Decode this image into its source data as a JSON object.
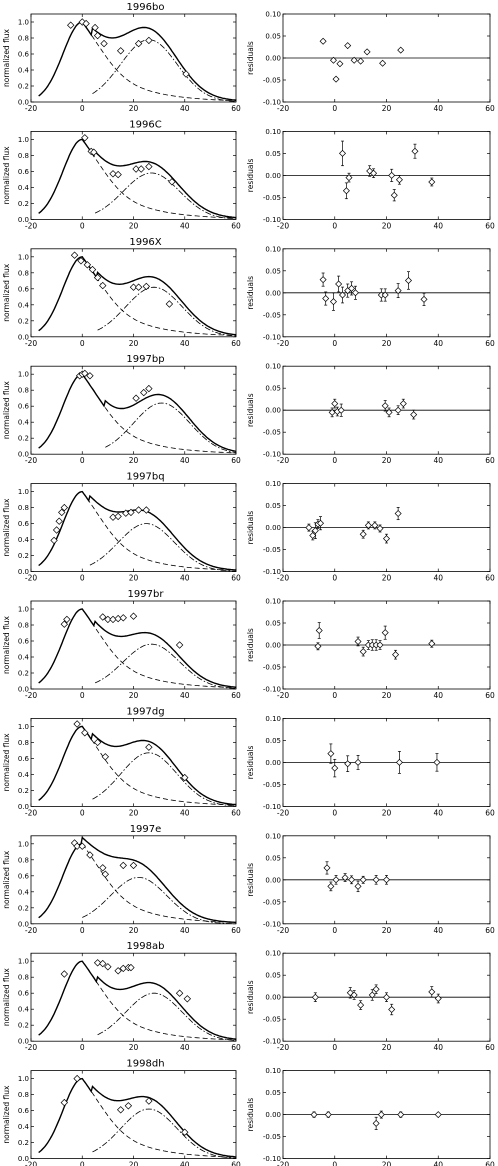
{
  "chart_data": {
    "type": "scatter",
    "layout": "10 rows x 2 columns",
    "rows": [
      {
        "name": "1996bo",
        "x": [
          -4.5,
          0,
          1.5,
          5,
          6,
          8.5,
          15,
          22,
          26,
          40.5
        ],
        "flux": [
          0.96,
          1.0,
          0.98,
          0.93,
          0.83,
          0.73,
          0.64,
          0.73,
          0.77,
          0.35
        ],
        "residual": [
          0.038,
          -0.005,
          -0.048,
          -0.013,
          0.028,
          -0.005,
          -0.007,
          0.014,
          -0.012,
          0.018
        ],
        "residual_x": [
          -4.5,
          -0.5,
          0.5,
          2,
          5,
          7.5,
          10,
          12.5,
          18.5,
          25.5
        ],
        "residual_err": [
          0,
          0,
          0,
          0,
          0,
          0,
          0,
          0,
          0,
          0
        ],
        "model": {
          "peak2": 26,
          "amp2": 0.78,
          "w1": 9,
          "w2": 11
        }
      },
      {
        "name": "1996C",
        "x": [
          1,
          3.5,
          4.5,
          12,
          14,
          21,
          23,
          26,
          35
        ],
        "flux": [
          1.02,
          0.85,
          0.84,
          0.57,
          0.56,
          0.63,
          0.63,
          0.66,
          0.47
        ],
        "residual": [
          0.05,
          -0.035,
          -0.005,
          0.01,
          0.005,
          0.0,
          -0.045,
          -0.01,
          0.055,
          -0.015
        ],
        "residual_x": [
          3,
          4.5,
          5.5,
          13.5,
          15,
          22,
          23,
          25,
          31,
          37.5
        ],
        "residual_err": [
          0.028,
          0.018,
          0.01,
          0.012,
          0.01,
          0.014,
          0.013,
          0.01,
          0.016,
          0.009
        ],
        "model": {
          "peak2": 27,
          "amp2": 0.58,
          "w1": 9,
          "w2": 11
        }
      },
      {
        "name": "1996X",
        "x": [
          -3,
          -0.5,
          2,
          4,
          6,
          8,
          20,
          22,
          25,
          34
        ],
        "flux": [
          1.02,
          0.95,
          0.9,
          0.84,
          0.74,
          0.64,
          0.62,
          0.62,
          0.63,
          0.41
        ],
        "residual": [
          0.03,
          -0.013,
          -0.02,
          0.02,
          -0.005,
          0.005,
          0.01,
          0.0,
          -0.005,
          -0.005,
          0.005,
          0.028,
          -0.015
        ],
        "residual_x": [
          -4.5,
          -3.5,
          -0.5,
          1.5,
          3,
          5,
          6.5,
          8,
          18,
          19.5,
          24.5,
          28.5,
          34.5
        ],
        "residual_err": [
          0.015,
          0.015,
          0.02,
          0.018,
          0.018,
          0.015,
          0.015,
          0.015,
          0.014,
          0.014,
          0.016,
          0.02,
          0.014
        ],
        "model": {
          "peak2": 28,
          "amp2": 0.62,
          "w1": 9,
          "w2": 11
        }
      },
      {
        "name": "1997bp",
        "x": [
          -1,
          0,
          1,
          3,
          21,
          24,
          26
        ],
        "flux": [
          0.98,
          1.0,
          1.01,
          0.98,
          0.7,
          0.77,
          0.82
        ],
        "residual": [
          -0.005,
          0.015,
          -0.003,
          0.0,
          0.01,
          -0.005,
          0.0,
          0.015,
          -0.01
        ],
        "residual_x": [
          -1,
          0,
          1,
          2.5,
          19.5,
          21,
          24.5,
          26.5,
          30.5
        ],
        "residual_err": [
          0.01,
          0.01,
          0.01,
          0.014,
          0.012,
          0.01,
          0.01,
          0.01,
          0.01
        ],
        "model": {
          "peak2": 31,
          "amp2": 0.64,
          "w1": 9,
          "w2": 11
        }
      },
      {
        "name": "1997bq",
        "x": [
          -11,
          -10,
          -9,
          -8,
          -7,
          12,
          14,
          17,
          19,
          22,
          25
        ],
        "flux": [
          0.39,
          0.52,
          0.63,
          0.74,
          0.8,
          0.68,
          0.69,
          0.73,
          0.74,
          0.77,
          0.77
        ],
        "residual": [
          0.0,
          -0.018,
          -0.007,
          0.008,
          0.01,
          -0.015,
          0.005,
          0.005,
          -0.002,
          -0.025,
          0.032
        ],
        "residual_x": [
          -10,
          -8.5,
          -7.5,
          -6.5,
          -5.5,
          11,
          13,
          15.5,
          17.5,
          20,
          24.5
        ],
        "residual_err": [
          0.008,
          0.01,
          0.018,
          0.01,
          0.015,
          0.009,
          0.008,
          0.008,
          0.008,
          0.01,
          0.014
        ],
        "model": {
          "peak2": 25,
          "amp2": 0.6,
          "w1": 9,
          "w2": 11
        }
      },
      {
        "name": "1997br",
        "x": [
          -7,
          -6,
          8,
          10,
          12,
          14,
          16,
          20,
          38
        ],
        "flux": [
          0.81,
          0.87,
          0.9,
          0.87,
          0.87,
          0.88,
          0.89,
          0.91,
          0.55
        ],
        "residual": [
          -0.003,
          0.033,
          0.008,
          -0.015,
          0.0,
          0.0,
          0.0,
          0.0,
          0.028,
          -0.022,
          0.003
        ],
        "residual_x": [
          -6.5,
          -6,
          9,
          11,
          13,
          14.5,
          16,
          17.5,
          19.5,
          23.5,
          37.5
        ],
        "residual_err": [
          0.008,
          0.018,
          0.01,
          0.01,
          0.01,
          0.012,
          0.012,
          0.01,
          0.015,
          0.01,
          0.008
        ],
        "model": {
          "peak2": 27,
          "amp2": 0.56,
          "w1": 9,
          "w2": 11
        }
      },
      {
        "name": "1997dg",
        "x": [
          -2,
          1,
          6,
          9,
          26,
          40
        ],
        "flux": [
          1.03,
          0.92,
          0.8,
          0.62,
          0.74,
          0.36
        ],
        "residual": [
          0.02,
          -0.013,
          -0.003,
          0.0,
          0.0,
          0.0
        ],
        "residual_x": [
          -1.5,
          0,
          5,
          9,
          25,
          39.5
        ],
        "residual_err": [
          0.022,
          0.02,
          0.018,
          0.016,
          0.025,
          0.02
        ],
        "model": {
          "peak2": 26,
          "amp2": 0.67,
          "w1": 9,
          "w2": 11
        }
      },
      {
        "name": "1997e",
        "x": [
          -3,
          -2,
          0,
          3,
          8,
          9,
          16,
          20
        ],
        "flux": [
          1.01,
          0.97,
          0.97,
          0.86,
          0.7,
          0.62,
          0.73,
          0.73
        ],
        "residual": [
          0.027,
          -0.015,
          0.0,
          0.005,
          0.0,
          -0.015,
          0.0,
          0.0,
          0.0
        ],
        "residual_x": [
          -3,
          -1.5,
          0.5,
          4,
          6.5,
          9,
          11,
          16,
          20
        ],
        "residual_err": [
          0.014,
          0.01,
          0.01,
          0.009,
          0.009,
          0.012,
          0.008,
          0.01,
          0.01
        ],
        "model": {
          "peak2": 22,
          "amp2": 0.58,
          "w1": 9,
          "w2": 11
        }
      },
      {
        "name": "1998ab",
        "x": [
          -7,
          6,
          8,
          10,
          14,
          16,
          18,
          19,
          38,
          41
        ],
        "flux": [
          0.84,
          0.98,
          0.97,
          0.93,
          0.88,
          0.91,
          0.92,
          0.92,
          0.6,
          0.53
        ],
        "residual": [
          0.0,
          0.01,
          0.005,
          -0.018,
          0.005,
          0.018,
          0.0,
          -0.028,
          0.012,
          -0.003
        ],
        "residual_x": [
          -7.5,
          6,
          7.5,
          10,
          14.5,
          16,
          20,
          22,
          37.5,
          40
        ],
        "residual_err": [
          0.01,
          0.012,
          0.01,
          0.01,
          0.012,
          0.01,
          0.01,
          0.012,
          0.012,
          0.01
        ],
        "model": {
          "peak2": 28,
          "amp2": 0.6,
          "w1": 9,
          "w2": 11
        }
      },
      {
        "name": "1998dh",
        "x": [
          -7,
          -2,
          15,
          18,
          26,
          40
        ],
        "flux": [
          0.7,
          1.0,
          0.61,
          0.66,
          0.72,
          0.33
        ],
        "residual": [
          0.0,
          0.0,
          -0.02,
          0.0,
          0.0,
          0.0
        ],
        "residual_x": [
          -8,
          -2.5,
          16,
          18,
          25.5,
          40
        ],
        "residual_err": [
          0.006,
          0.006,
          0.014,
          0.008,
          0.006,
          0.002
        ],
        "model": {
          "peak2": 26,
          "amp2": 0.62,
          "w1": 9,
          "w2": 11
        }
      }
    ],
    "left_panel": {
      "ylabel": "normalized flux",
      "xlim": [
        -20,
        60
      ],
      "ylim": [
        0,
        1.1
      ],
      "xticks": [
        "-20",
        "0",
        "20",
        "40",
        "60"
      ],
      "yticks": [
        "0.0",
        "0.2",
        "0.4",
        "0.6",
        "0.8",
        "1.0"
      ]
    },
    "right_panel": {
      "ylabel": "residuals",
      "xlim": [
        -20,
        60
      ],
      "ylim": [
        -0.1,
        0.1
      ],
      "xticks": [
        "-20",
        "0",
        "20",
        "40",
        "60"
      ],
      "yticks": [
        "-0.10",
        "-0.05",
        "0.00",
        "0.05",
        "0.10"
      ]
    }
  }
}
